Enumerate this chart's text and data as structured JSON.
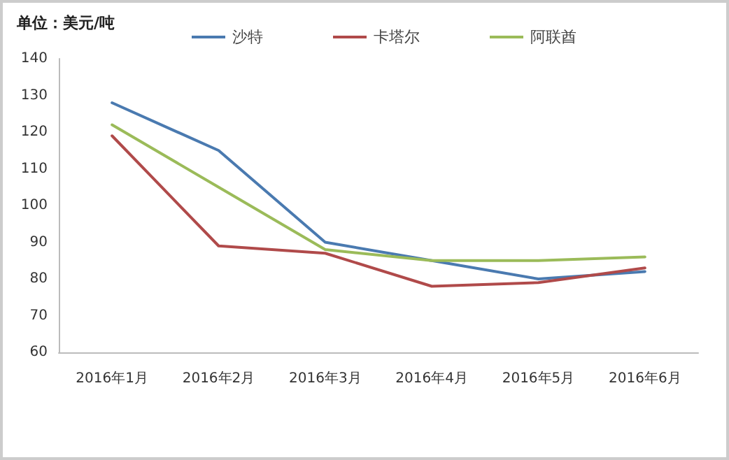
{
  "chart_data": {
    "type": "line",
    "ylabel": "单位：美元/吨",
    "categories": [
      "2016年1月",
      "2016年2月",
      "2016年3月",
      "2016年4月",
      "2016年5月",
      "2016年6月"
    ],
    "series": [
      {
        "name": "沙特",
        "color": "#4a7ab0",
        "values": [
          128,
          115,
          90,
          85,
          80,
          82
        ]
      },
      {
        "name": "卡塔尔",
        "color": "#b04a4a",
        "values": [
          119,
          89,
          87,
          78,
          79,
          83
        ]
      },
      {
        "name": "阿联酋",
        "color": "#9bbb59",
        "values": [
          122,
          105,
          88,
          85,
          85,
          86
        ]
      }
    ],
    "ylim": [
      60,
      140
    ],
    "yticks": [
      60,
      70,
      80,
      90,
      100,
      110,
      120,
      130,
      140
    ],
    "grid": false,
    "legend": "top",
    "marker": "none",
    "line_style": "solid"
  }
}
